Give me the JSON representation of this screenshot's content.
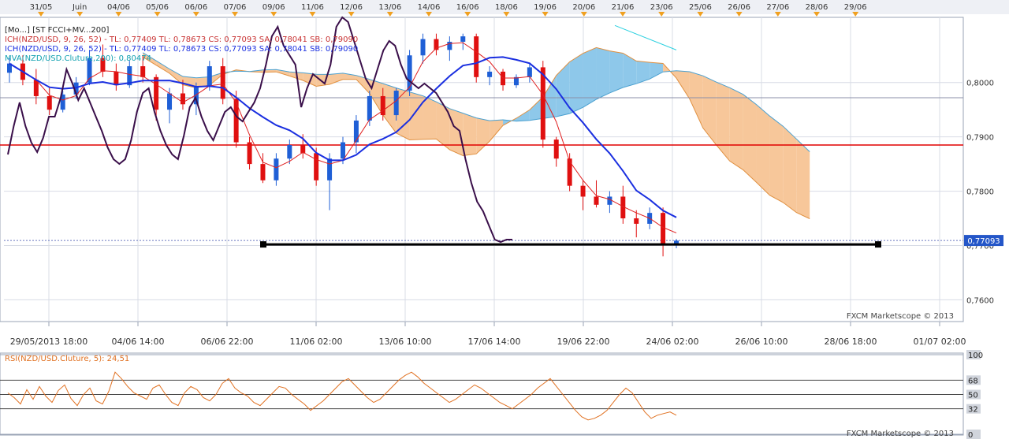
{
  "chart_data": [
    {
      "type": "candlestick",
      "instrument": "NZD/USD",
      "top_date_labels": [
        "31/05",
        "Juin",
        "04/06",
        "05/06",
        "06/06",
        "07/06",
        "09/06",
        "11/06",
        "12/06",
        "13/06",
        "14/06",
        "16/06",
        "18/06",
        "19/06",
        "20/06",
        "21/06",
        "23/06",
        "25/06",
        "26/06",
        "27/06",
        "28/06",
        "29/06"
      ],
      "x_tick_labels": [
        "29/05/2013 18:00",
        "04/06 14:00",
        "06/06 22:00",
        "11/06 02:00",
        "13/06 10:00",
        "17/06 14:00",
        "19/06 22:00",
        "24/06 02:00",
        "26/06 10:00",
        "28/06 18:00",
        "01/07 02:00"
      ],
      "y_tick_labels": [
        "0,8000",
        "0,7900",
        "0,7800",
        "0,7700",
        "0,7600"
      ],
      "ylim": [
        0.756,
        0.812
      ],
      "current_price_label": "0,77093",
      "current_price": 0.77093,
      "support_price": 0.7702,
      "resistance_price": 0.7885,
      "resistance_line_color": "#e00000",
      "up_color": "#1f5fd6",
      "down_color": "#e01010",
      "candles_approx": [
        [
          0.8018,
          0.8045,
          0.8,
          0.8035
        ],
        [
          0.8035,
          0.805,
          0.7995,
          0.8005
        ],
        [
          0.8005,
          0.8025,
          0.796,
          0.7975
        ],
        [
          0.7975,
          0.799,
          0.794,
          0.795
        ],
        [
          0.795,
          0.7985,
          0.7945,
          0.7978
        ],
        [
          0.7978,
          0.801,
          0.797,
          0.8
        ],
        [
          0.8,
          0.806,
          0.7995,
          0.8045
        ],
        [
          0.8045,
          0.807,
          0.801,
          0.802
        ],
        [
          0.802,
          0.8035,
          0.7985,
          0.7995
        ],
        [
          0.7995,
          0.804,
          0.799,
          0.803
        ],
        [
          0.803,
          0.805,
          0.8,
          0.801
        ],
        [
          0.801,
          0.8015,
          0.793,
          0.795
        ],
        [
          0.795,
          0.799,
          0.7925,
          0.798
        ],
        [
          0.798,
          0.8005,
          0.795,
          0.796
        ],
        [
          0.796,
          0.8,
          0.794,
          0.7992
        ],
        [
          0.7992,
          0.804,
          0.7985,
          0.803
        ],
        [
          0.803,
          0.8045,
          0.796,
          0.797
        ],
        [
          0.797,
          0.7985,
          0.788,
          0.789
        ],
        [
          0.789,
          0.79,
          0.784,
          0.785
        ],
        [
          0.785,
          0.787,
          0.7815,
          0.782
        ],
        [
          0.782,
          0.787,
          0.781,
          0.786
        ],
        [
          0.786,
          0.7895,
          0.785,
          0.7885
        ],
        [
          0.7885,
          0.7905,
          0.786,
          0.787
        ],
        [
          0.787,
          0.788,
          0.781,
          0.782
        ],
        [
          0.782,
          0.787,
          0.7765,
          0.786
        ],
        [
          0.786,
          0.79,
          0.785,
          0.789
        ],
        [
          0.789,
          0.794,
          0.787,
          0.793
        ],
        [
          0.793,
          0.7985,
          0.792,
          0.7975
        ],
        [
          0.7975,
          0.799,
          0.793,
          0.794
        ],
        [
          0.794,
          0.799,
          0.793,
          0.7985
        ],
        [
          0.7985,
          0.806,
          0.7975,
          0.805
        ],
        [
          0.805,
          0.809,
          0.8035,
          0.808
        ],
        [
          0.808,
          0.809,
          0.805,
          0.806
        ],
        [
          0.806,
          0.8085,
          0.804,
          0.8075
        ],
        [
          0.8075,
          0.809,
          0.806,
          0.8085
        ],
        [
          0.8085,
          0.809,
          0.8,
          0.801
        ],
        [
          0.801,
          0.803,
          0.7995,
          0.802
        ],
        [
          0.802,
          0.8025,
          0.7985,
          0.7995
        ],
        [
          0.7995,
          0.8015,
          0.799,
          0.801
        ],
        [
          0.801,
          0.8035,
          0.8,
          0.8028
        ],
        [
          0.8028,
          0.804,
          0.788,
          0.7895
        ],
        [
          0.7895,
          0.79,
          0.7845,
          0.786
        ],
        [
          0.786,
          0.787,
          0.78,
          0.781
        ],
        [
          0.781,
          0.782,
          0.7765,
          0.779
        ],
        [
          0.779,
          0.782,
          0.777,
          0.7775
        ],
        [
          0.7775,
          0.78,
          0.776,
          0.779
        ],
        [
          0.779,
          0.781,
          0.774,
          0.775
        ],
        [
          0.775,
          0.7765,
          0.7715,
          0.774
        ],
        [
          0.774,
          0.777,
          0.773,
          0.776
        ],
        [
          0.776,
          0.777,
          0.768,
          0.77
        ],
        [
          0.77,
          0.7712,
          0.7695,
          0.7709
        ]
      ],
      "rsi": {
        "label": "RSI(NZD/USD.Cluture, 5): 24,51",
        "levels": [
          100,
          68,
          50,
          32,
          0
        ],
        "level_labels": [
          "100",
          "68",
          "50",
          "32",
          "0"
        ],
        "values_approx": [
          52,
          46,
          38,
          56,
          44,
          60,
          48,
          40,
          55,
          62,
          45,
          36,
          50,
          58,
          42,
          38,
          54,
          78,
          70,
          60,
          52,
          48,
          44,
          58,
          62,
          50,
          40,
          36,
          52,
          60,
          56,
          46,
          42,
          50,
          64,
          70,
          58,
          52,
          48,
          40,
          36,
          44,
          52,
          60,
          58,
          50,
          44,
          38,
          30,
          36,
          42,
          50,
          58,
          66,
          70,
          62,
          54,
          46,
          40,
          44,
          52,
          60,
          68,
          74,
          78,
          72,
          64,
          58,
          52,
          46,
          40,
          44,
          50,
          56,
          62,
          58,
          52,
          46,
          40,
          36,
          32,
          38,
          44,
          50,
          58,
          64,
          70,
          60,
          50,
          40,
          30,
          22,
          18,
          20,
          24,
          30,
          40,
          50,
          58,
          52,
          40,
          28,
          20,
          24,
          26,
          28,
          24
        ]
      },
      "cci_approx": [
        42,
        54,
        64,
        54,
        47,
        43,
        49,
        58,
        58,
        66,
        78,
        72,
        65,
        70,
        64,
        58,
        52,
        45,
        40,
        38,
        40,
        48,
        60,
        68,
        70,
        60,
        52,
        46,
        42,
        40,
        50,
        62,
        66,
        58,
        52,
        48,
        54,
        60,
        62,
        58,
        56,
        60,
        64,
        70,
        80,
        92,
        96,
        88,
        84,
        80,
        62,
        70,
        76,
        74,
        72,
        80,
        96,
        100,
        98,
        90,
        82,
        74,
        70,
        78,
        86,
        90,
        88,
        80,
        74,
        72,
        70,
        72,
        70,
        68,
        64,
        60,
        54,
        52,
        40,
        30,
        22,
        18,
        12,
        6,
        5,
        6,
        6
      ],
      "watermark_top": "FXCM Marketscope © 2013",
      "watermark_bottom": "FXCM Marketscope © 2013"
    }
  ],
  "legend": {
    "line1": "[Mo...] [ST FCCI+MV...200]",
    "line2": "ICH(NZD/USD, 9, 26, 52) - TL: 0,77409  TL: 0,78673  CS: 0,77093  SA: 0,78041  SB: 0,79090",
    "line3": "ICH(NZD/USD, 9, 26, 52) - TL: 0,77409  TL: 0,78673  CS: 0,77093  SA: 0,78041  SB: 0,79090",
    "line4": "MVA(NZD/USD.Cluture,200): 0,80474"
  },
  "colors": {
    "background": "#ffffff",
    "panel_border": "#9aa3b5",
    "grid": "#d8dce6",
    "tenkan": "#e02020",
    "kijun": "#1a2fe0",
    "cloud_bull": "#8ec8ea",
    "cloud_bear": "#f7c79a",
    "cci": "#3a0f4a",
    "rsi": "#e07020",
    "mva": "#2bd0e0",
    "support": "#000000",
    "current_price_box": "#2456c8",
    "watermark": "#444444"
  }
}
